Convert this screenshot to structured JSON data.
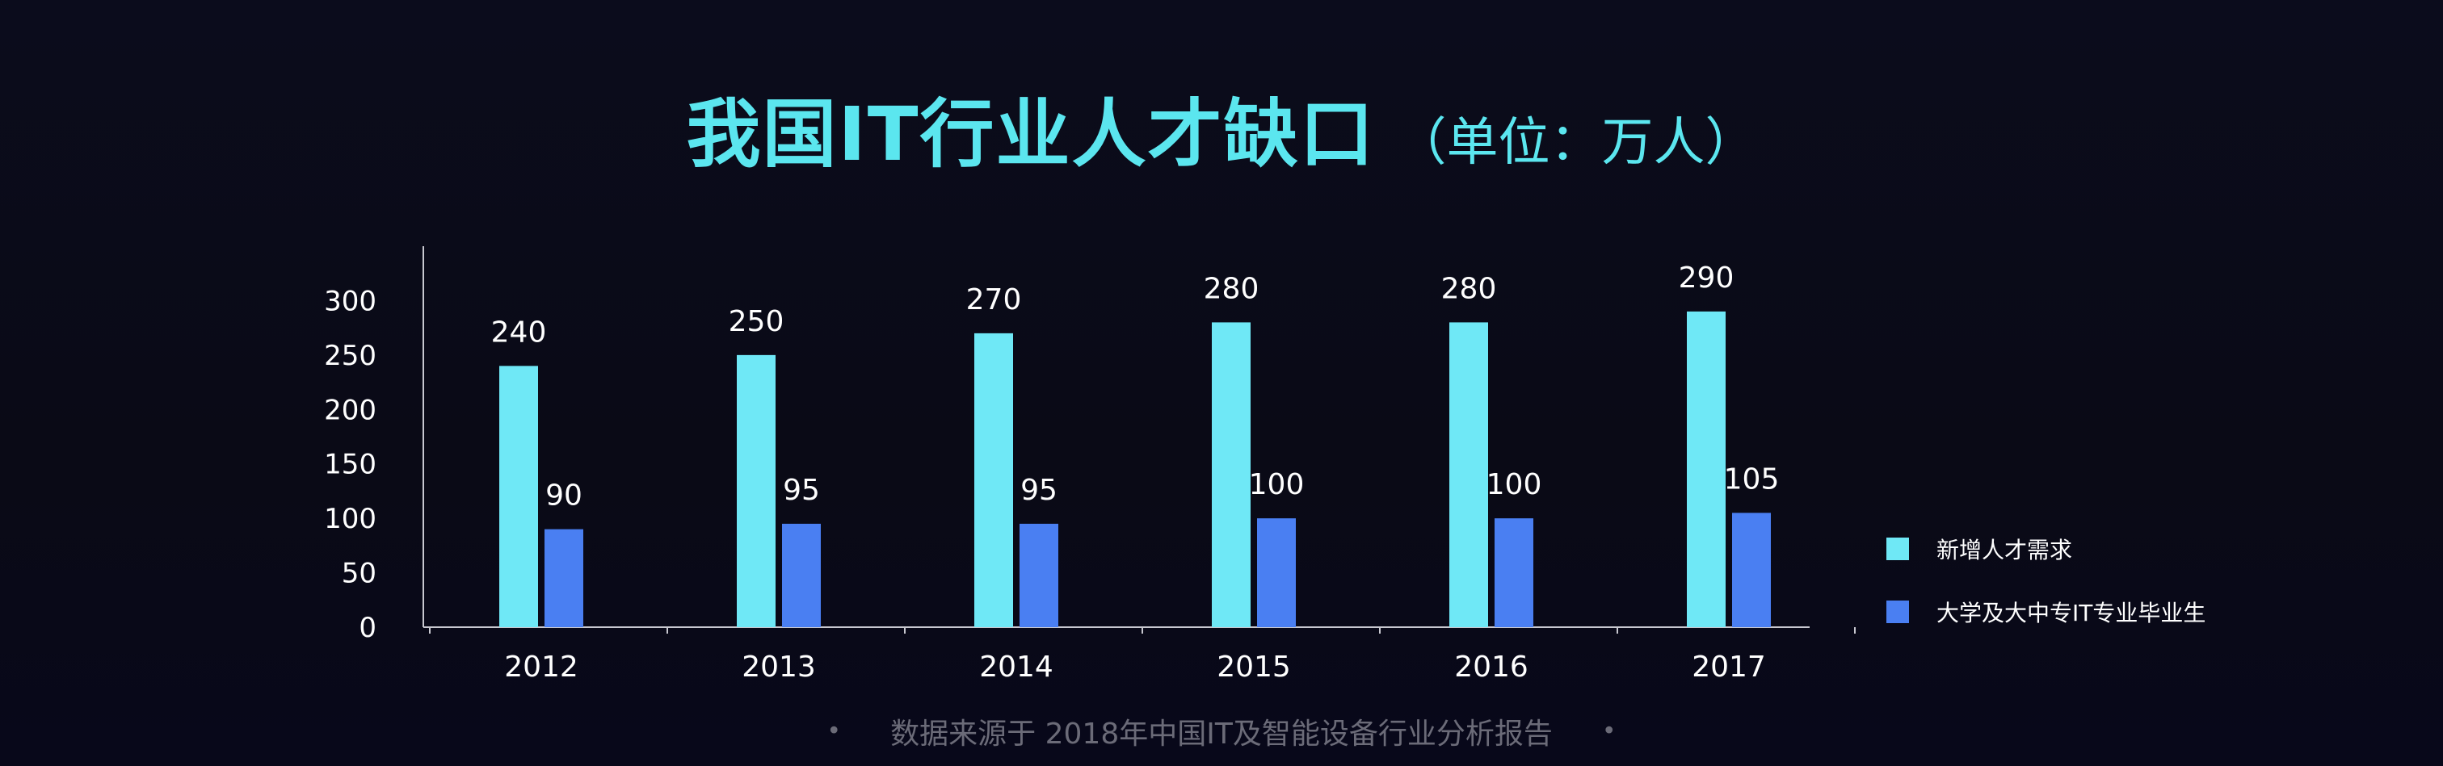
{
  "chart_data": {
    "type": "bar",
    "title": "我国IT行业人才缺口",
    "subtitle": "（单位：万人）",
    "categories": [
      "2012",
      "2013",
      "2014",
      "2015",
      "2016",
      "2017"
    ],
    "series": [
      {
        "name": "新增人才需求",
        "values": [
          240,
          250,
          270,
          280,
          280,
          290
        ],
        "color": "#6fe8f6"
      },
      {
        "name": "大学及大中专IT专业毕业生",
        "values": [
          90,
          95,
          95,
          100,
          100,
          105
        ],
        "color": "#4a7ff2"
      }
    ],
    "yticks": [
      0,
      50,
      100,
      150,
      200,
      250,
      300
    ],
    "ylim": [
      0,
      350
    ],
    "xlabel": "",
    "ylabel": "",
    "grid": false,
    "legend_position": "right"
  },
  "footer": {
    "bullet": "•",
    "source": "数据来源于 2018年中国IT及智能设备行业分析报告"
  }
}
